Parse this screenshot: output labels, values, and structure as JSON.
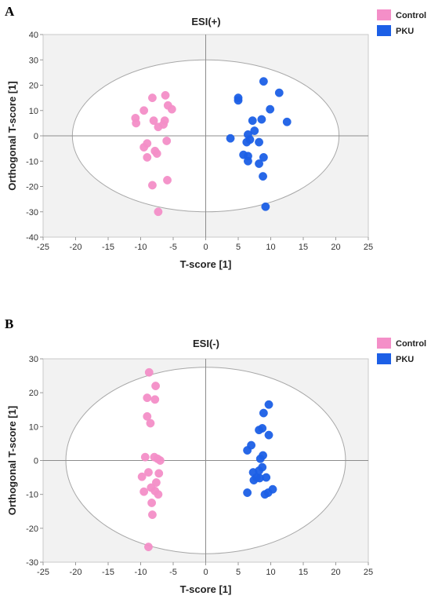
{
  "chart_data": [
    {
      "type": "scatter",
      "panel_label": "A",
      "title": "ESI(+)",
      "xlabel": "T-score [1]",
      "ylabel": "Orthogonal T-score [1]",
      "xlim": [
        -25,
        25
      ],
      "ylim": [
        -40,
        40
      ],
      "xticks": [
        "-25",
        "-20",
        "-15",
        "-10",
        "-5",
        "0",
        "5",
        "10",
        "15",
        "20",
        "25"
      ],
      "yticks": [
        "40",
        "30",
        "20",
        "10",
        "0",
        "-10",
        "-20",
        "-30",
        "-40"
      ],
      "legend_position": "top-right",
      "ellipse": {
        "cx": 0,
        "cy": 0,
        "rx": 20.5,
        "ry": 30
      },
      "series": [
        {
          "name": "Control",
          "color": "#F48FC8",
          "points": [
            [
              -10.8,
              7
            ],
            [
              -10.7,
              5
            ],
            [
              -9.5,
              10
            ],
            [
              -8.2,
              15
            ],
            [
              -6.2,
              16
            ],
            [
              -5.8,
              12
            ],
            [
              -5.2,
              10.5
            ],
            [
              -8,
              6
            ],
            [
              -6.3,
              6
            ],
            [
              -6.5,
              4.5
            ],
            [
              -7.3,
              3.5
            ],
            [
              -9.5,
              -4.5
            ],
            [
              -9,
              -3
            ],
            [
              -7.8,
              -6
            ],
            [
              -7.5,
              -7
            ],
            [
              -6,
              -2
            ],
            [
              -9,
              -8.5
            ],
            [
              -8.2,
              -19.5
            ],
            [
              -5.9,
              -17.5
            ],
            [
              -7.3,
              -30
            ]
          ]
        },
        {
          "name": "PKU",
          "color": "#1C5FE6",
          "points": [
            [
              8.9,
              21.5
            ],
            [
              11.3,
              17
            ],
            [
              5,
              15
            ],
            [
              5,
              14
            ],
            [
              9.9,
              10.5
            ],
            [
              12.5,
              5.5
            ],
            [
              7.2,
              6
            ],
            [
              8.6,
              6.5
            ],
            [
              7.5,
              2
            ],
            [
              6.5,
              0.5
            ],
            [
              6.8,
              -1.5
            ],
            [
              6.3,
              -2.5
            ],
            [
              8.2,
              -2.5
            ],
            [
              3.8,
              -1
            ],
            [
              5.8,
              -7.5
            ],
            [
              6.5,
              -8
            ],
            [
              6.5,
              -10
            ],
            [
              8.2,
              -11
            ],
            [
              8.9,
              -8.5
            ],
            [
              8.8,
              -16
            ],
            [
              9.2,
              -28
            ]
          ]
        }
      ]
    },
    {
      "type": "scatter",
      "panel_label": "B",
      "title": "ESI(-)",
      "xlabel": "T-score [1]",
      "ylabel": "Orthogonal T-score [1]",
      "xlim": [
        -25,
        25
      ],
      "ylim": [
        -30,
        30
      ],
      "xticks": [
        "-25",
        "-20",
        "-15",
        "-10",
        "-5",
        "0",
        "5",
        "10",
        "15",
        "20",
        "25"
      ],
      "yticks": [
        "30",
        "20",
        "10",
        "0",
        "-10",
        "-20",
        "-30"
      ],
      "legend_position": "top-right",
      "ellipse": {
        "cx": 0,
        "cy": 0,
        "rx": 21.5,
        "ry": 27.5
      },
      "series": [
        {
          "name": "Control",
          "color": "#F48FC8",
          "points": [
            [
              -8.7,
              26
            ],
            [
              -7.7,
              22
            ],
            [
              -9,
              18.5
            ],
            [
              -7.8,
              18
            ],
            [
              -9,
              13
            ],
            [
              -8.5,
              11
            ],
            [
              -9.3,
              1
            ],
            [
              -7.9,
              1
            ],
            [
              -7.4,
              0.5
            ],
            [
              -7,
              0
            ],
            [
              -8.8,
              -3.5
            ],
            [
              -7.2,
              -3.8
            ],
            [
              -9.8,
              -4.8
            ],
            [
              -7.6,
              -6.5
            ],
            [
              -8.4,
              -8
            ],
            [
              -7.8,
              -9
            ],
            [
              -9.5,
              -9.2
            ],
            [
              -7.3,
              -10
            ],
            [
              -8.3,
              -12.5
            ],
            [
              -8.2,
              -16
            ],
            [
              -8.8,
              -25.5
            ]
          ]
        },
        {
          "name": "PKU",
          "color": "#1C5FE6",
          "points": [
            [
              9.7,
              16.5
            ],
            [
              8.9,
              14
            ],
            [
              8.7,
              9.5
            ],
            [
              8.2,
              9
            ],
            [
              9.7,
              7.5
            ],
            [
              7,
              4.5
            ],
            [
              6.4,
              3
            ],
            [
              8.8,
              1.5
            ],
            [
              8.4,
              0.5
            ],
            [
              8.7,
              -2
            ],
            [
              8.2,
              -3
            ],
            [
              7.3,
              -3.5
            ],
            [
              7.8,
              -5
            ],
            [
              7.4,
              -5.8
            ],
            [
              8.3,
              -5.2
            ],
            [
              9.3,
              -5
            ],
            [
              10.3,
              -8.5
            ],
            [
              9.6,
              -9.5
            ],
            [
              9.1,
              -10
            ],
            [
              6.4,
              -9.5
            ]
          ]
        }
      ]
    }
  ]
}
